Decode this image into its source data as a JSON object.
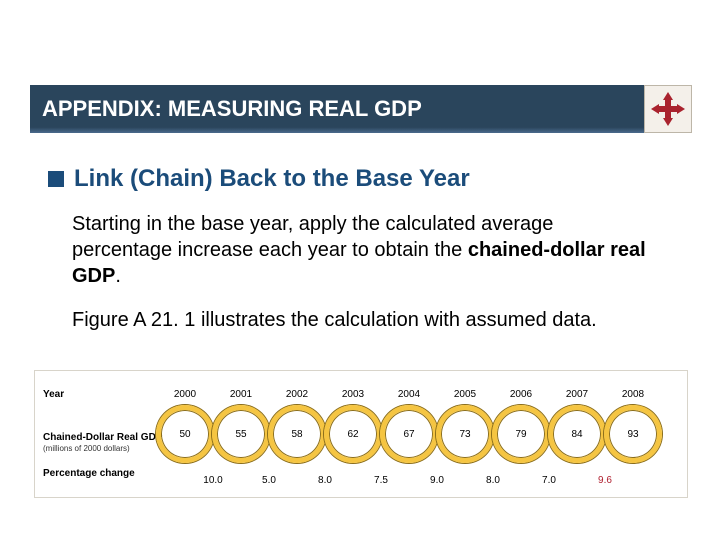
{
  "header": {
    "title": "APPENDIX: MEASURING REAL GDP"
  },
  "moveIcon": {
    "fill": "#a9232e",
    "bg": "#f4f0ea",
    "border": "#bdb6a8"
  },
  "bullet": {
    "color": "#1b4c7a",
    "text": "Link (Chain) Back to the Base Year"
  },
  "paragraphs": [
    {
      "pre": "Starting in the base year, apply the calculated average percentage increase each year to obtain the ",
      "bold": "chained-dollar real GDP",
      "post": "."
    },
    {
      "pre": "Figure A 21. 1 illustrates the calculation with assumed data.",
      "bold": "",
      "post": ""
    }
  ],
  "figure": {
    "rowLabels": {
      "year": "Year",
      "gdp": "Chained-Dollar Real GDP",
      "gdpSub": "(millions of 2000 dollars)",
      "pct": "Percentage change"
    },
    "ring": {
      "diameter": 58,
      "spacing": 56,
      "borderColor": "#f5c542",
      "outlineColor": "#8a6d1a",
      "borderWidth": 5
    },
    "years": [
      "2000",
      "2001",
      "2002",
      "2003",
      "2004",
      "2005",
      "2006",
      "2007",
      "2008"
    ],
    "gdp": [
      "50",
      "55",
      "58",
      "62",
      "67",
      "73",
      "79",
      "84",
      "93"
    ],
    "pct": [
      "10.0",
      "5.0",
      "8.0",
      "7.5",
      "9.0",
      "8.0",
      "7.0",
      "9.6"
    ],
    "pctLastHighlight": true,
    "pctHighlightColor": "#b02030"
  }
}
